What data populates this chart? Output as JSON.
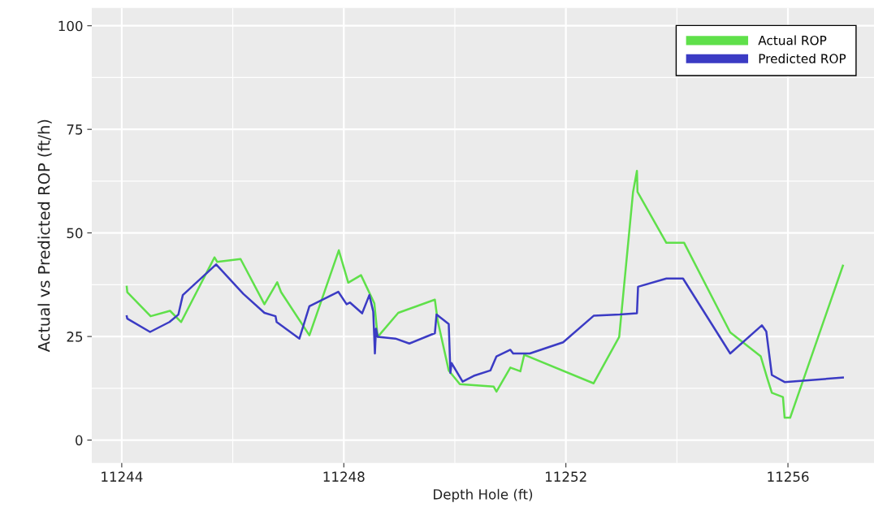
{
  "chart_data": {
    "type": "line",
    "xlabel": "Depth Hole (ft)",
    "ylabel": "Actual vs Predicted ROP (ft/h)",
    "xlim": [
      11243.46,
      11257.55
    ],
    "xticks": [
      11244,
      11248,
      11252,
      11256
    ],
    "ylim": [
      -5.5,
      104.3
    ],
    "yticks": [
      0,
      25,
      50,
      75,
      100
    ],
    "grid": true,
    "legend": "top right",
    "marker": "none",
    "line_style": "solid",
    "series": [
      {
        "name": "Actual ROP",
        "color": "#5fe04a",
        "x": [
          11244.09,
          11244.1,
          11244.52,
          11244.87,
          11245.07,
          11245.67,
          11245.72,
          11246.14,
          11246.57,
          11246.8,
          11246.87,
          11247.38,
          11247.91,
          11248.08,
          11248.31,
          11248.55,
          11248.61,
          11248.98,
          11249.64,
          11249.69,
          11249.89,
          11250.09,
          11250.7,
          11250.75,
          11251.0,
          11251.18,
          11251.25,
          11252.5,
          11252.96,
          11253.21,
          11253.28,
          11253.29,
          11253.81,
          11254.13,
          11254.96,
          11255.51,
          11255.63,
          11255.71,
          11255.91,
          11255.94,
          11256.04,
          11256.99
        ],
        "values": [
          37.0,
          35.7,
          29.9,
          31.2,
          28.5,
          44.1,
          43.0,
          43.7,
          32.8,
          38.1,
          35.7,
          25.3,
          45.8,
          38.0,
          39.8,
          33.0,
          24.9,
          30.7,
          33.9,
          28.9,
          16.8,
          13.5,
          12.9,
          11.7,
          17.5,
          16.6,
          20.6,
          13.7,
          24.9,
          59.9,
          65.0,
          59.9,
          47.6,
          47.6,
          26.0,
          20.2,
          14.8,
          11.4,
          10.4,
          5.4,
          5.4,
          42.1
        ]
      },
      {
        "name": "Predicted ROP",
        "color": "#3b3bc4",
        "x": [
          11244.09,
          11244.1,
          11244.51,
          11244.86,
          11245.02,
          11245.1,
          11245.7,
          11246.19,
          11246.57,
          11246.77,
          11246.79,
          11247.2,
          11247.38,
          11247.9,
          11248.05,
          11248.11,
          11248.33,
          11248.46,
          11248.53,
          11248.56,
          11248.58,
          11248.61,
          11248.93,
          11249.18,
          11249.64,
          11249.67,
          11249.89,
          11249.92,
          11249.94,
          11250.14,
          11250.34,
          11250.64,
          11250.75,
          11251.0,
          11251.05,
          11251.35,
          11251.95,
          11252.5,
          11252.97,
          11253.28,
          11253.3,
          11253.81,
          11254.11,
          11254.96,
          11255.53,
          11255.61,
          11255.71,
          11255.94,
          11256.99
        ],
        "values": [
          29.9,
          29.3,
          26.1,
          28.5,
          30.3,
          35.0,
          42.4,
          35.3,
          30.7,
          29.9,
          28.5,
          24.5,
          32.3,
          35.8,
          32.8,
          33.2,
          30.6,
          35.0,
          31.0,
          20.9,
          26.9,
          24.9,
          24.5,
          23.3,
          25.8,
          30.3,
          28.0,
          16.2,
          18.6,
          14.1,
          15.5,
          16.8,
          20.2,
          21.8,
          20.9,
          20.9,
          23.6,
          30.0,
          30.3,
          30.6,
          37.0,
          39.0,
          39.0,
          20.9,
          27.7,
          26.2,
          15.7,
          14.0,
          15.1
        ]
      }
    ]
  }
}
